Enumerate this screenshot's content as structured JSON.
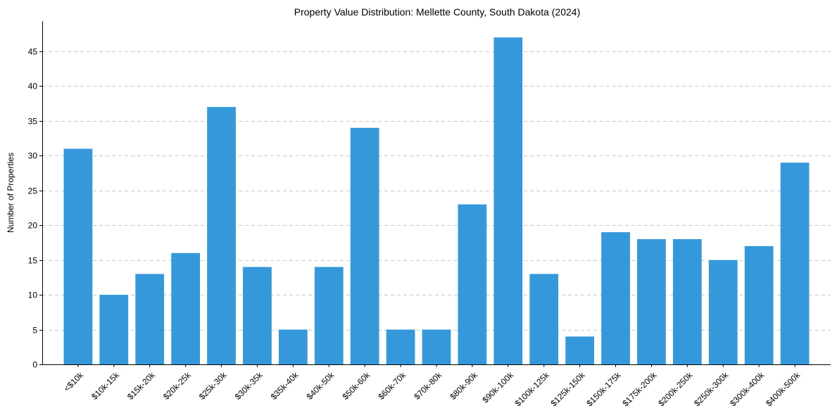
{
  "chart_data": {
    "type": "bar",
    "title": "Property Value Distribution: Mellette County, South Dakota (2024)",
    "xlabel": "",
    "ylabel": "Number of Properties",
    "categories": [
      "<$10k",
      "$10k-15k",
      "$15k-20k",
      "$20k-25k",
      "$25k-30k",
      "$30k-35k",
      "$35k-40k",
      "$40k-50k",
      "$50k-60k",
      "$60k-70k",
      "$70k-80k",
      "$80k-90k",
      "$90k-100k",
      "$100k-125k",
      "$125k-150k",
      "$150k-175k",
      "$175k-200k",
      "$200k-250k",
      "$250k-300k",
      "$300k-400k",
      "$400k-500k"
    ],
    "values": [
      31,
      10,
      13,
      16,
      37,
      14,
      5,
      14,
      34,
      5,
      5,
      23,
      47,
      13,
      4,
      19,
      18,
      18,
      15,
      17,
      29
    ],
    "ylim": [
      0,
      49.35
    ],
    "yticks": [
      0,
      5,
      10,
      15,
      20,
      25,
      30,
      35,
      40,
      45
    ],
    "grid": "y-dashed",
    "bar_color": "#3498db"
  }
}
